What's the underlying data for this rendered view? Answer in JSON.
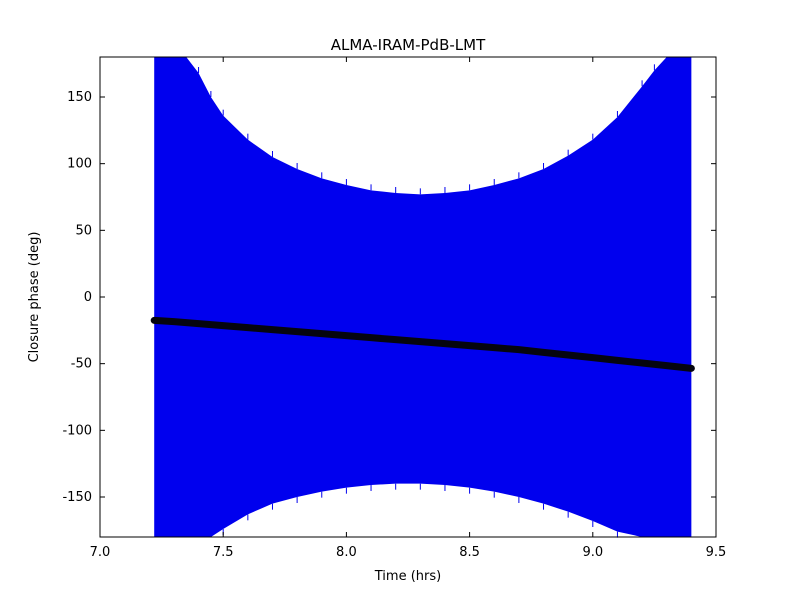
{
  "figure": {
    "background": "#ffffff",
    "frame_color": "#000000"
  },
  "chart_data": {
    "type": "scatter",
    "title": "ALMA-IRAM-PdB-LMT",
    "xlabel": "Time (hrs)",
    "ylabel": "Closure phase (deg)",
    "xlim": [
      7.0,
      9.5
    ],
    "ylim": [
      -180,
      180
    ],
    "grid": false,
    "legend": "none",
    "xticks": [
      7.0,
      7.5,
      8.0,
      8.5,
      9.0,
      9.5
    ],
    "xtick_labels": [
      "7.0",
      "7.5",
      "8.0",
      "8.5",
      "9.0",
      "9.5"
    ],
    "yticks": [
      -150,
      -100,
      -50,
      0,
      50,
      100,
      150
    ],
    "ytick_labels": [
      "-150",
      "-100",
      "-50",
      "0",
      "50",
      "100",
      "150"
    ],
    "series": [
      {
        "name": "noisy-closure-phase-scatter-band",
        "type": "band",
        "color": "#0000ee",
        "x_start": 7.22,
        "x_end": 9.4,
        "x": [
          7.22,
          7.3,
          7.35,
          7.4,
          7.45,
          7.5,
          7.6,
          7.7,
          7.8,
          7.9,
          8.0,
          8.1,
          8.2,
          8.3,
          8.4,
          8.5,
          8.6,
          8.7,
          8.8,
          8.9,
          9.0,
          9.1,
          9.2,
          9.25,
          9.3,
          9.33,
          9.4
        ],
        "top": [
          180,
          180,
          180,
          168,
          150,
          136,
          118,
          105,
          96,
          89,
          84,
          80,
          78,
          77,
          78,
          80,
          84,
          89,
          96,
          106,
          118,
          135,
          158,
          170,
          180,
          180,
          180
        ],
        "bottom": [
          -180,
          -180,
          -180,
          -180,
          -180,
          -174,
          -163,
          -155,
          -150,
          -146,
          -143,
          -141,
          -140,
          -140,
          -141,
          -143,
          -146,
          -150,
          -155,
          -161,
          -168,
          -176,
          -180,
          -180,
          -180,
          -180,
          -180
        ]
      },
      {
        "name": "model-closure-phase-curve",
        "type": "line",
        "color": "#05050f",
        "linewidth": 7,
        "x": [
          7.22,
          7.3,
          7.4,
          7.5,
          7.6,
          7.7,
          7.8,
          7.9,
          8.0,
          8.1,
          8.2,
          8.3,
          8.4,
          8.5,
          8.6,
          8.7,
          8.8,
          8.9,
          9.0,
          9.1,
          9.2,
          9.3,
          9.35,
          9.4
        ],
        "y": [
          -17.5,
          -18.5,
          -20.0,
          -21.5,
          -23.0,
          -24.5,
          -26.0,
          -27.5,
          -29.0,
          -30.5,
          -32.0,
          -33.5,
          -35.0,
          -36.5,
          -38.0,
          -39.5,
          -41.5,
          -43.5,
          -45.5,
          -47.5,
          -49.5,
          -51.5,
          -52.5,
          -53.5
        ]
      }
    ]
  }
}
